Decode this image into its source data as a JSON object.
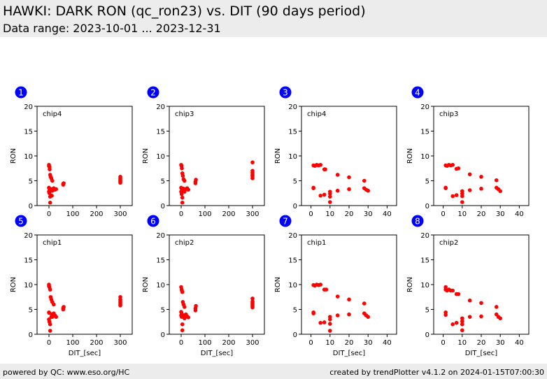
{
  "header": {
    "title": "HAWKI: DARK RON (qc_ron23) vs. DIT (90 days period)",
    "subtitle": "Data range: 2023-10-01 ... 2023-12-31"
  },
  "footer": {
    "left": "powered by QC: www.eso.org/HC",
    "right": "created by trendPlotter v4.1.2 on 2024-01-15T07:00:30"
  },
  "colors": {
    "points": "#ff0000",
    "badge": "#0000ff",
    "header_bg": "#ececec"
  },
  "chart_data": [
    {
      "type": "scatter",
      "badge": "1",
      "label": "chip4",
      "xlabel": "",
      "ylabel": "RON",
      "xlim": [
        -50,
        350
      ],
      "ylim": [
        0,
        20
      ],
      "xticks": [
        0,
        100,
        200,
        300
      ],
      "yticks": [
        0,
        5,
        10,
        15,
        20
      ],
      "points": [
        [
          0,
          8.2
        ],
        [
          0,
          8.0
        ],
        [
          2,
          7.8
        ],
        [
          3,
          7.3
        ],
        [
          5,
          6.2
        ],
        [
          7,
          5.8
        ],
        [
          10,
          5.5
        ],
        [
          14,
          5.0
        ],
        [
          0,
          3.6
        ],
        [
          1,
          3.5
        ],
        [
          2,
          3.4
        ],
        [
          0,
          2.8
        ],
        [
          2,
          2.5
        ],
        [
          5,
          1.8
        ],
        [
          10,
          3.3
        ],
        [
          12,
          2.0
        ],
        [
          14,
          3.0
        ],
        [
          20,
          3.5
        ],
        [
          25,
          3.2
        ],
        [
          30,
          3.3
        ],
        [
          5,
          0.6
        ],
        [
          60,
          4.2
        ],
        [
          60,
          4.4
        ],
        [
          62,
          4.5
        ],
        [
          300,
          5.8
        ],
        [
          300,
          5.5
        ],
        [
          300,
          5.2
        ],
        [
          300,
          5.0
        ],
        [
          300,
          4.8
        ],
        [
          300,
          4.6
        ]
      ]
    },
    {
      "type": "scatter",
      "badge": "2",
      "label": "chip3",
      "xlabel": "",
      "ylabel": "RON",
      "xlim": [
        -50,
        350
      ],
      "ylim": [
        0,
        20
      ],
      "xticks": [
        0,
        100,
        200,
        300
      ],
      "yticks": [
        0,
        5,
        10,
        15,
        20
      ],
      "points": [
        [
          0,
          8.2
        ],
        [
          2,
          8.0
        ],
        [
          3,
          7.5
        ],
        [
          5,
          6.5
        ],
        [
          7,
          6.0
        ],
        [
          10,
          5.3
        ],
        [
          14,
          5.0
        ],
        [
          0,
          3.6
        ],
        [
          2,
          3.4
        ],
        [
          0,
          2.8
        ],
        [
          2,
          2.3
        ],
        [
          5,
          1.6
        ],
        [
          10,
          3.4
        ],
        [
          12,
          3.0
        ],
        [
          14,
          2.8
        ],
        [
          20,
          3.3
        ],
        [
          25,
          3.5
        ],
        [
          30,
          3.2
        ],
        [
          5,
          0.6
        ],
        [
          60,
          4.5
        ],
        [
          60,
          4.8
        ],
        [
          62,
          5.2
        ],
        [
          300,
          8.7
        ],
        [
          300,
          7.0
        ],
        [
          300,
          6.6
        ],
        [
          300,
          6.2
        ],
        [
          300,
          5.9
        ],
        [
          300,
          5.5
        ]
      ]
    },
    {
      "type": "scatter",
      "badge": "3",
      "label": "chip4",
      "xlabel": "",
      "ylabel": "RON",
      "xlim": [
        -5,
        45
      ],
      "ylim": [
        0,
        20
      ],
      "xticks": [
        0,
        10,
        20,
        30,
        40
      ],
      "yticks": [
        0,
        5,
        10,
        15,
        20
      ],
      "points": [
        [
          1.3,
          8.1
        ],
        [
          2,
          8.0
        ],
        [
          3,
          8.2
        ],
        [
          4,
          8.1
        ],
        [
          5,
          8.2
        ],
        [
          7,
          7.3
        ],
        [
          7.5,
          7.3
        ],
        [
          1.3,
          3.6
        ],
        [
          1.3,
          3.5
        ],
        [
          5,
          2.0
        ],
        [
          7,
          2.2
        ],
        [
          10,
          2.8
        ],
        [
          10,
          2.4
        ],
        [
          10,
          1.8
        ],
        [
          10,
          0.7
        ],
        [
          14,
          6.2
        ],
        [
          14,
          3.0
        ],
        [
          20,
          5.7
        ],
        [
          20,
          3.3
        ],
        [
          28,
          5.0
        ],
        [
          28,
          3.5
        ],
        [
          29,
          3.2
        ],
        [
          30,
          3.0
        ]
      ]
    },
    {
      "type": "scatter",
      "badge": "4",
      "label": "chip3",
      "xlabel": "",
      "ylabel": "RON",
      "xlim": [
        -5,
        45
      ],
      "ylim": [
        0,
        20
      ],
      "xticks": [
        0,
        10,
        20,
        30,
        40
      ],
      "yticks": [
        0,
        5,
        10,
        15,
        20
      ],
      "points": [
        [
          1.3,
          8.1
        ],
        [
          2,
          8.0
        ],
        [
          3,
          8.2
        ],
        [
          4,
          8.1
        ],
        [
          5,
          8.2
        ],
        [
          7,
          7.4
        ],
        [
          8,
          7.5
        ],
        [
          1.3,
          3.6
        ],
        [
          1.3,
          3.5
        ],
        [
          5,
          1.9
        ],
        [
          7,
          2.1
        ],
        [
          10,
          2.9
        ],
        [
          10,
          2.4
        ],
        [
          10,
          1.9
        ],
        [
          10,
          0.7
        ],
        [
          14,
          6.3
        ],
        [
          14,
          3.1
        ],
        [
          20,
          5.8
        ],
        [
          20,
          3.4
        ],
        [
          28,
          5.1
        ],
        [
          28,
          3.6
        ],
        [
          29,
          3.3
        ],
        [
          30,
          2.9
        ]
      ]
    },
    {
      "type": "scatter",
      "badge": "5",
      "label": "chip1",
      "xlabel": "DIT_[sec]",
      "ylabel": "RON",
      "xlim": [
        -50,
        350
      ],
      "ylim": [
        0,
        20
      ],
      "xticks": [
        0,
        100,
        200,
        300
      ],
      "yticks": [
        0,
        5,
        10,
        15,
        20
      ],
      "points": [
        [
          0,
          10.0
        ],
        [
          0,
          9.7
        ],
        [
          2,
          9.5
        ],
        [
          5,
          9.0
        ],
        [
          7,
          7.5
        ],
        [
          10,
          7.0
        ],
        [
          14,
          6.5
        ],
        [
          20,
          6.0
        ],
        [
          0,
          4.4
        ],
        [
          1,
          4.3
        ],
        [
          0,
          3.0
        ],
        [
          2,
          2.5
        ],
        [
          5,
          2.0
        ],
        [
          10,
          3.5
        ],
        [
          12,
          4.0
        ],
        [
          14,
          3.5
        ],
        [
          20,
          4.2
        ],
        [
          25,
          3.8
        ],
        [
          30,
          3.5
        ],
        [
          5,
          0.7
        ],
        [
          60,
          5.0
        ],
        [
          60,
          5.3
        ],
        [
          62,
          5.5
        ],
        [
          300,
          7.5
        ],
        [
          300,
          7.0
        ],
        [
          300,
          6.7
        ],
        [
          300,
          6.4
        ],
        [
          300,
          6.1
        ],
        [
          300,
          5.8
        ]
      ]
    },
    {
      "type": "scatter",
      "badge": "6",
      "label": "chip2",
      "xlabel": "DIT_[sec]",
      "ylabel": "RON",
      "xlim": [
        -50,
        350
      ],
      "ylim": [
        0,
        20
      ],
      "xticks": [
        0,
        100,
        200,
        300
      ],
      "yticks": [
        0,
        5,
        10,
        15,
        20
      ],
      "points": [
        [
          0,
          9.5
        ],
        [
          2,
          9.0
        ],
        [
          3,
          8.8
        ],
        [
          5,
          8.5
        ],
        [
          7,
          6.5
        ],
        [
          10,
          6.0
        ],
        [
          14,
          5.5
        ],
        [
          0,
          4.5
        ],
        [
          2,
          4.2
        ],
        [
          0,
          3.8
        ],
        [
          2,
          3.5
        ],
        [
          5,
          2.0
        ],
        [
          10,
          3.5
        ],
        [
          12,
          3.8
        ],
        [
          14,
          3.2
        ],
        [
          20,
          4.0
        ],
        [
          25,
          3.6
        ],
        [
          30,
          3.4
        ],
        [
          5,
          0.8
        ],
        [
          60,
          4.8
        ],
        [
          60,
          5.2
        ],
        [
          62,
          5.7
        ],
        [
          300,
          7.2
        ],
        [
          300,
          6.6
        ],
        [
          300,
          6.3
        ],
        [
          300,
          6.0
        ],
        [
          300,
          5.7
        ],
        [
          300,
          5.4
        ]
      ]
    },
    {
      "type": "scatter",
      "badge": "7",
      "label": "chip1",
      "xlabel": "DIT_[sec]",
      "ylabel": "RON",
      "xlim": [
        -5,
        45
      ],
      "ylim": [
        0,
        20
      ],
      "xticks": [
        0,
        10,
        20,
        30,
        40
      ],
      "yticks": [
        0,
        5,
        10,
        15,
        20
      ],
      "points": [
        [
          1.3,
          9.9
        ],
        [
          2,
          9.8
        ],
        [
          3,
          10.0
        ],
        [
          4,
          9.9
        ],
        [
          5,
          10.0
        ],
        [
          7,
          9.0
        ],
        [
          8,
          9.0
        ],
        [
          1.3,
          4.4
        ],
        [
          1.3,
          4.2
        ],
        [
          5,
          2.3
        ],
        [
          7,
          2.4
        ],
        [
          10,
          3.5
        ],
        [
          10,
          3.0
        ],
        [
          10,
          2.1
        ],
        [
          10,
          0.7
        ],
        [
          14,
          7.6
        ],
        [
          14,
          3.8
        ],
        [
          20,
          7.0
        ],
        [
          20,
          4.0
        ],
        [
          28,
          6.2
        ],
        [
          28,
          4.2
        ],
        [
          29,
          3.8
        ],
        [
          30,
          3.5
        ]
      ]
    },
    {
      "type": "scatter",
      "badge": "8",
      "label": "chip2",
      "xlabel": "DIT_[sec]",
      "ylabel": "RON",
      "xlim": [
        -5,
        45
      ],
      "ylim": [
        0,
        20
      ],
      "xticks": [
        0,
        10,
        20,
        30,
        40
      ],
      "yticks": [
        0,
        5,
        10,
        15,
        20
      ],
      "points": [
        [
          1.3,
          9.5
        ],
        [
          1.3,
          9.0
        ],
        [
          2,
          8.8
        ],
        [
          3,
          9.0
        ],
        [
          4,
          8.8
        ],
        [
          5,
          8.8
        ],
        [
          7,
          8.1
        ],
        [
          8,
          8.1
        ],
        [
          1.3,
          4.4
        ],
        [
          1.3,
          3.9
        ],
        [
          5,
          2.0
        ],
        [
          7,
          2.3
        ],
        [
          10,
          3.2
        ],
        [
          10,
          2.6
        ],
        [
          10,
          2.0
        ],
        [
          10,
          0.8
        ],
        [
          14,
          6.8
        ],
        [
          14,
          3.5
        ],
        [
          20,
          6.3
        ],
        [
          20,
          3.6
        ],
        [
          28,
          5.5
        ],
        [
          28,
          4.0
        ],
        [
          29,
          3.5
        ],
        [
          30,
          3.2
        ]
      ]
    }
  ]
}
